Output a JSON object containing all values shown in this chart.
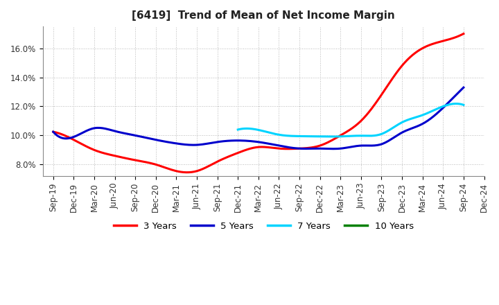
{
  "title": "[6419]  Trend of Mean of Net Income Margin",
  "x_labels": [
    "Sep-19",
    "Dec-19",
    "Mar-20",
    "Jun-20",
    "Sep-20",
    "Dec-20",
    "Mar-21",
    "Jun-21",
    "Sep-21",
    "Dec-21",
    "Mar-22",
    "Jun-22",
    "Sep-22",
    "Dec-22",
    "Mar-23",
    "Jun-23",
    "Sep-23",
    "Dec-23",
    "Mar-24",
    "Jun-24",
    "Sep-24",
    "Dec-24"
  ],
  "ylim": [
    0.072,
    0.175
  ],
  "yticks": [
    0.08,
    0.1,
    0.12,
    0.14,
    0.16
  ],
  "ytick_labels": [
    "8.0%",
    "10.0%",
    "12.0%",
    "14.0%",
    "16.0%"
  ],
  "series": {
    "3 Years": {
      "color": "#ff0000",
      "data_x": [
        0,
        1,
        2,
        3,
        4,
        5,
        6,
        7,
        8,
        9,
        10,
        11,
        12,
        13,
        14,
        15,
        16,
        17,
        18,
        19,
        20
      ],
      "data_y": [
        0.1025,
        0.097,
        0.09,
        0.086,
        0.083,
        0.08,
        0.0755,
        0.0755,
        0.082,
        0.088,
        0.092,
        0.091,
        0.091,
        0.093,
        0.1,
        0.11,
        0.128,
        0.148,
        0.16,
        0.165,
        0.17
      ]
    },
    "5 Years": {
      "color": "#0000cc",
      "data_x": [
        0,
        1,
        2,
        3,
        4,
        5,
        6,
        7,
        8,
        9,
        10,
        11,
        12,
        13,
        14,
        15,
        16,
        17,
        18,
        19,
        20
      ],
      "data_y": [
        0.1025,
        0.099,
        0.105,
        0.103,
        0.1,
        0.097,
        0.0945,
        0.0935,
        0.0955,
        0.0965,
        0.0955,
        0.093,
        0.091,
        0.091,
        0.091,
        0.093,
        0.094,
        0.102,
        0.108,
        0.119,
        0.133
      ]
    },
    "7 Years": {
      "color": "#00d4ff",
      "data_x": [
        9,
        10,
        11,
        12,
        13,
        14,
        15,
        16,
        17,
        18,
        19,
        20
      ],
      "data_y": [
        0.104,
        0.1038,
        0.1005,
        0.0995,
        0.0993,
        0.0993,
        0.0998,
        0.101,
        0.109,
        0.114,
        0.12,
        0.121
      ]
    },
    "10 Years": {
      "color": "#008000",
      "data_x": [],
      "data_y": []
    }
  },
  "legend_labels": [
    "3 Years",
    "5 Years",
    "7 Years",
    "10 Years"
  ],
  "legend_colors": [
    "#ff0000",
    "#0000cc",
    "#00d4ff",
    "#008000"
  ],
  "background_color": "#ffffff",
  "grid_color": "#b0b0b0",
  "title_fontsize": 11,
  "label_fontsize": 8.5
}
